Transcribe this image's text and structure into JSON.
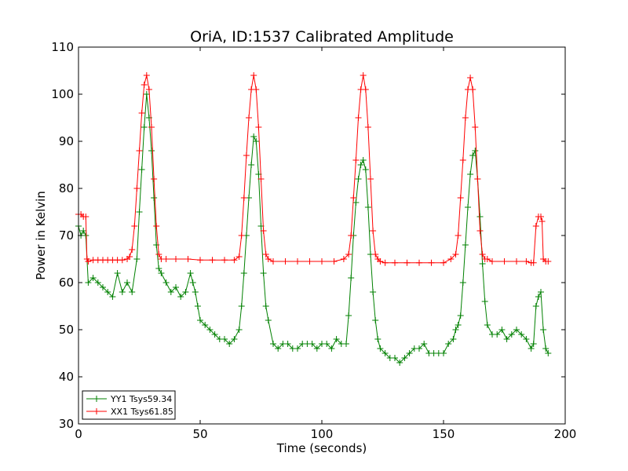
{
  "chart_data": {
    "type": "line",
    "title": "OriA, ID:1537 Calibrated Amplitude",
    "xlabel": "Time (seconds)",
    "ylabel": "Power in Kelvin",
    "xlim": [
      0,
      200
    ],
    "ylim": [
      30,
      110
    ],
    "xticks": [
      "0",
      "50",
      "100",
      "150",
      "200"
    ],
    "yticks": [
      "30",
      "40",
      "50",
      "60",
      "70",
      "80",
      "90",
      "100",
      "110"
    ],
    "grid": false,
    "legend_position": "bottom-left",
    "series": [
      {
        "name": "YY1 Tsys59.34",
        "color": "#008000",
        "marker": "+",
        "x": [
          0,
          1,
          2,
          3,
          4,
          6,
          8,
          10,
          12,
          14,
          16,
          18,
          20,
          22,
          24,
          25,
          26,
          27,
          28,
          29,
          30,
          31,
          32,
          33,
          34,
          36,
          38,
          40,
          42,
          44,
          46,
          47,
          48,
          49,
          50,
          52,
          54,
          56,
          58,
          60,
          62,
          64,
          66,
          67,
          68,
          69,
          70,
          71,
          72,
          73,
          74,
          75,
          76,
          77,
          78,
          80,
          82,
          84,
          86,
          88,
          90,
          92,
          94,
          96,
          98,
          100,
          102,
          104,
          106,
          108,
          110,
          111,
          112,
          113,
          114,
          115,
          116,
          117,
          118,
          119,
          120,
          121,
          122,
          123,
          124,
          126,
          128,
          130,
          132,
          134,
          136,
          138,
          140,
          142,
          144,
          146,
          148,
          150,
          152,
          154,
          155,
          156,
          157,
          158,
          159,
          160,
          161,
          162,
          163,
          164,
          165,
          166,
          167,
          168,
          170,
          172,
          174,
          176,
          178,
          180,
          182,
          184,
          186,
          187,
          188,
          189,
          190,
          191,
          192,
          193
        ],
        "y": [
          72,
          70,
          71,
          70,
          60,
          61,
          60,
          59,
          58,
          57,
          62,
          58,
          60,
          58,
          65,
          75,
          84,
          93,
          100,
          95,
          88,
          78,
          68,
          63,
          62,
          60,
          58,
          59,
          57,
          58,
          62,
          60,
          58,
          55,
          52,
          51,
          50,
          49,
          48,
          48,
          47,
          48,
          50,
          55,
          62,
          70,
          78,
          85,
          91,
          90,
          83,
          72,
          62,
          55,
          52,
          47,
          46,
          47,
          47,
          46,
          46,
          47,
          47,
          47,
          46,
          47,
          47,
          46,
          48,
          47,
          47,
          53,
          61,
          70,
          77,
          82,
          85,
          86,
          84,
          76,
          66,
          58,
          52,
          48,
          46,
          45,
          44,
          44,
          43,
          44,
          45,
          46,
          46,
          47,
          45,
          45,
          45,
          45,
          47,
          48,
          50,
          51,
          53,
          60,
          68,
          76,
          83,
          87,
          88,
          82,
          74,
          64,
          56,
          51,
          49,
          49,
          50,
          48,
          49,
          50,
          49,
          48,
          46,
          47,
          55,
          57,
          58,
          50,
          46,
          45
        ]
      },
      {
        "name": "XX1 Tsys61.85",
        "color": "#ff0000",
        "marker": "+",
        "x": [
          0,
          1,
          2,
          3,
          3.5,
          4,
          6,
          8,
          10,
          12,
          14,
          16,
          18,
          20,
          21,
          22,
          23,
          24,
          25,
          26,
          27,
          28,
          29,
          30,
          31,
          32,
          33,
          34,
          36,
          40,
          45,
          50,
          55,
          60,
          64,
          66,
          67,
          68,
          69,
          70,
          71,
          72,
          73,
          74,
          75,
          76,
          77,
          78,
          80,
          85,
          90,
          95,
          100,
          105,
          109,
          111,
          112,
          113,
          114,
          115,
          116,
          117,
          118,
          119,
          120,
          121,
          122,
          123,
          124,
          126,
          130,
          135,
          140,
          145,
          150,
          153,
          155,
          156,
          157,
          158,
          159,
          160,
          161,
          162,
          163,
          164,
          165,
          166,
          167,
          168,
          170,
          175,
          180,
          184,
          186,
          187,
          188,
          189,
          190,
          190.5,
          191,
          192,
          193
        ],
        "y": [
          74.5,
          74.5,
          74,
          74,
          65,
          64.5,
          64.8,
          64.8,
          64.8,
          64.8,
          64.8,
          64.8,
          64.8,
          65,
          65.5,
          67,
          72,
          80,
          88,
          96,
          102,
          104,
          101,
          93,
          82,
          72,
          66,
          65,
          65,
          65,
          65,
          64.8,
          64.8,
          64.8,
          64.8,
          65.5,
          70,
          78,
          87,
          95,
          101,
          104,
          101,
          93,
          82,
          71,
          66,
          65,
          64.5,
          64.5,
          64.5,
          64.5,
          64.5,
          64.5,
          65,
          66,
          70,
          78,
          86,
          95,
          101,
          104,
          101,
          93,
          82,
          71,
          66,
          65,
          64.5,
          64.2,
          64.2,
          64.2,
          64.2,
          64.2,
          64.2,
          65,
          66,
          70,
          78,
          86,
          95,
          101,
          103.5,
          101,
          93,
          82,
          71,
          66,
          65,
          65,
          64.5,
          64.5,
          64.5,
          64.5,
          64.2,
          64.2,
          72,
          74,
          74,
          73,
          65,
          64.5,
          64.5
        ]
      }
    ]
  }
}
